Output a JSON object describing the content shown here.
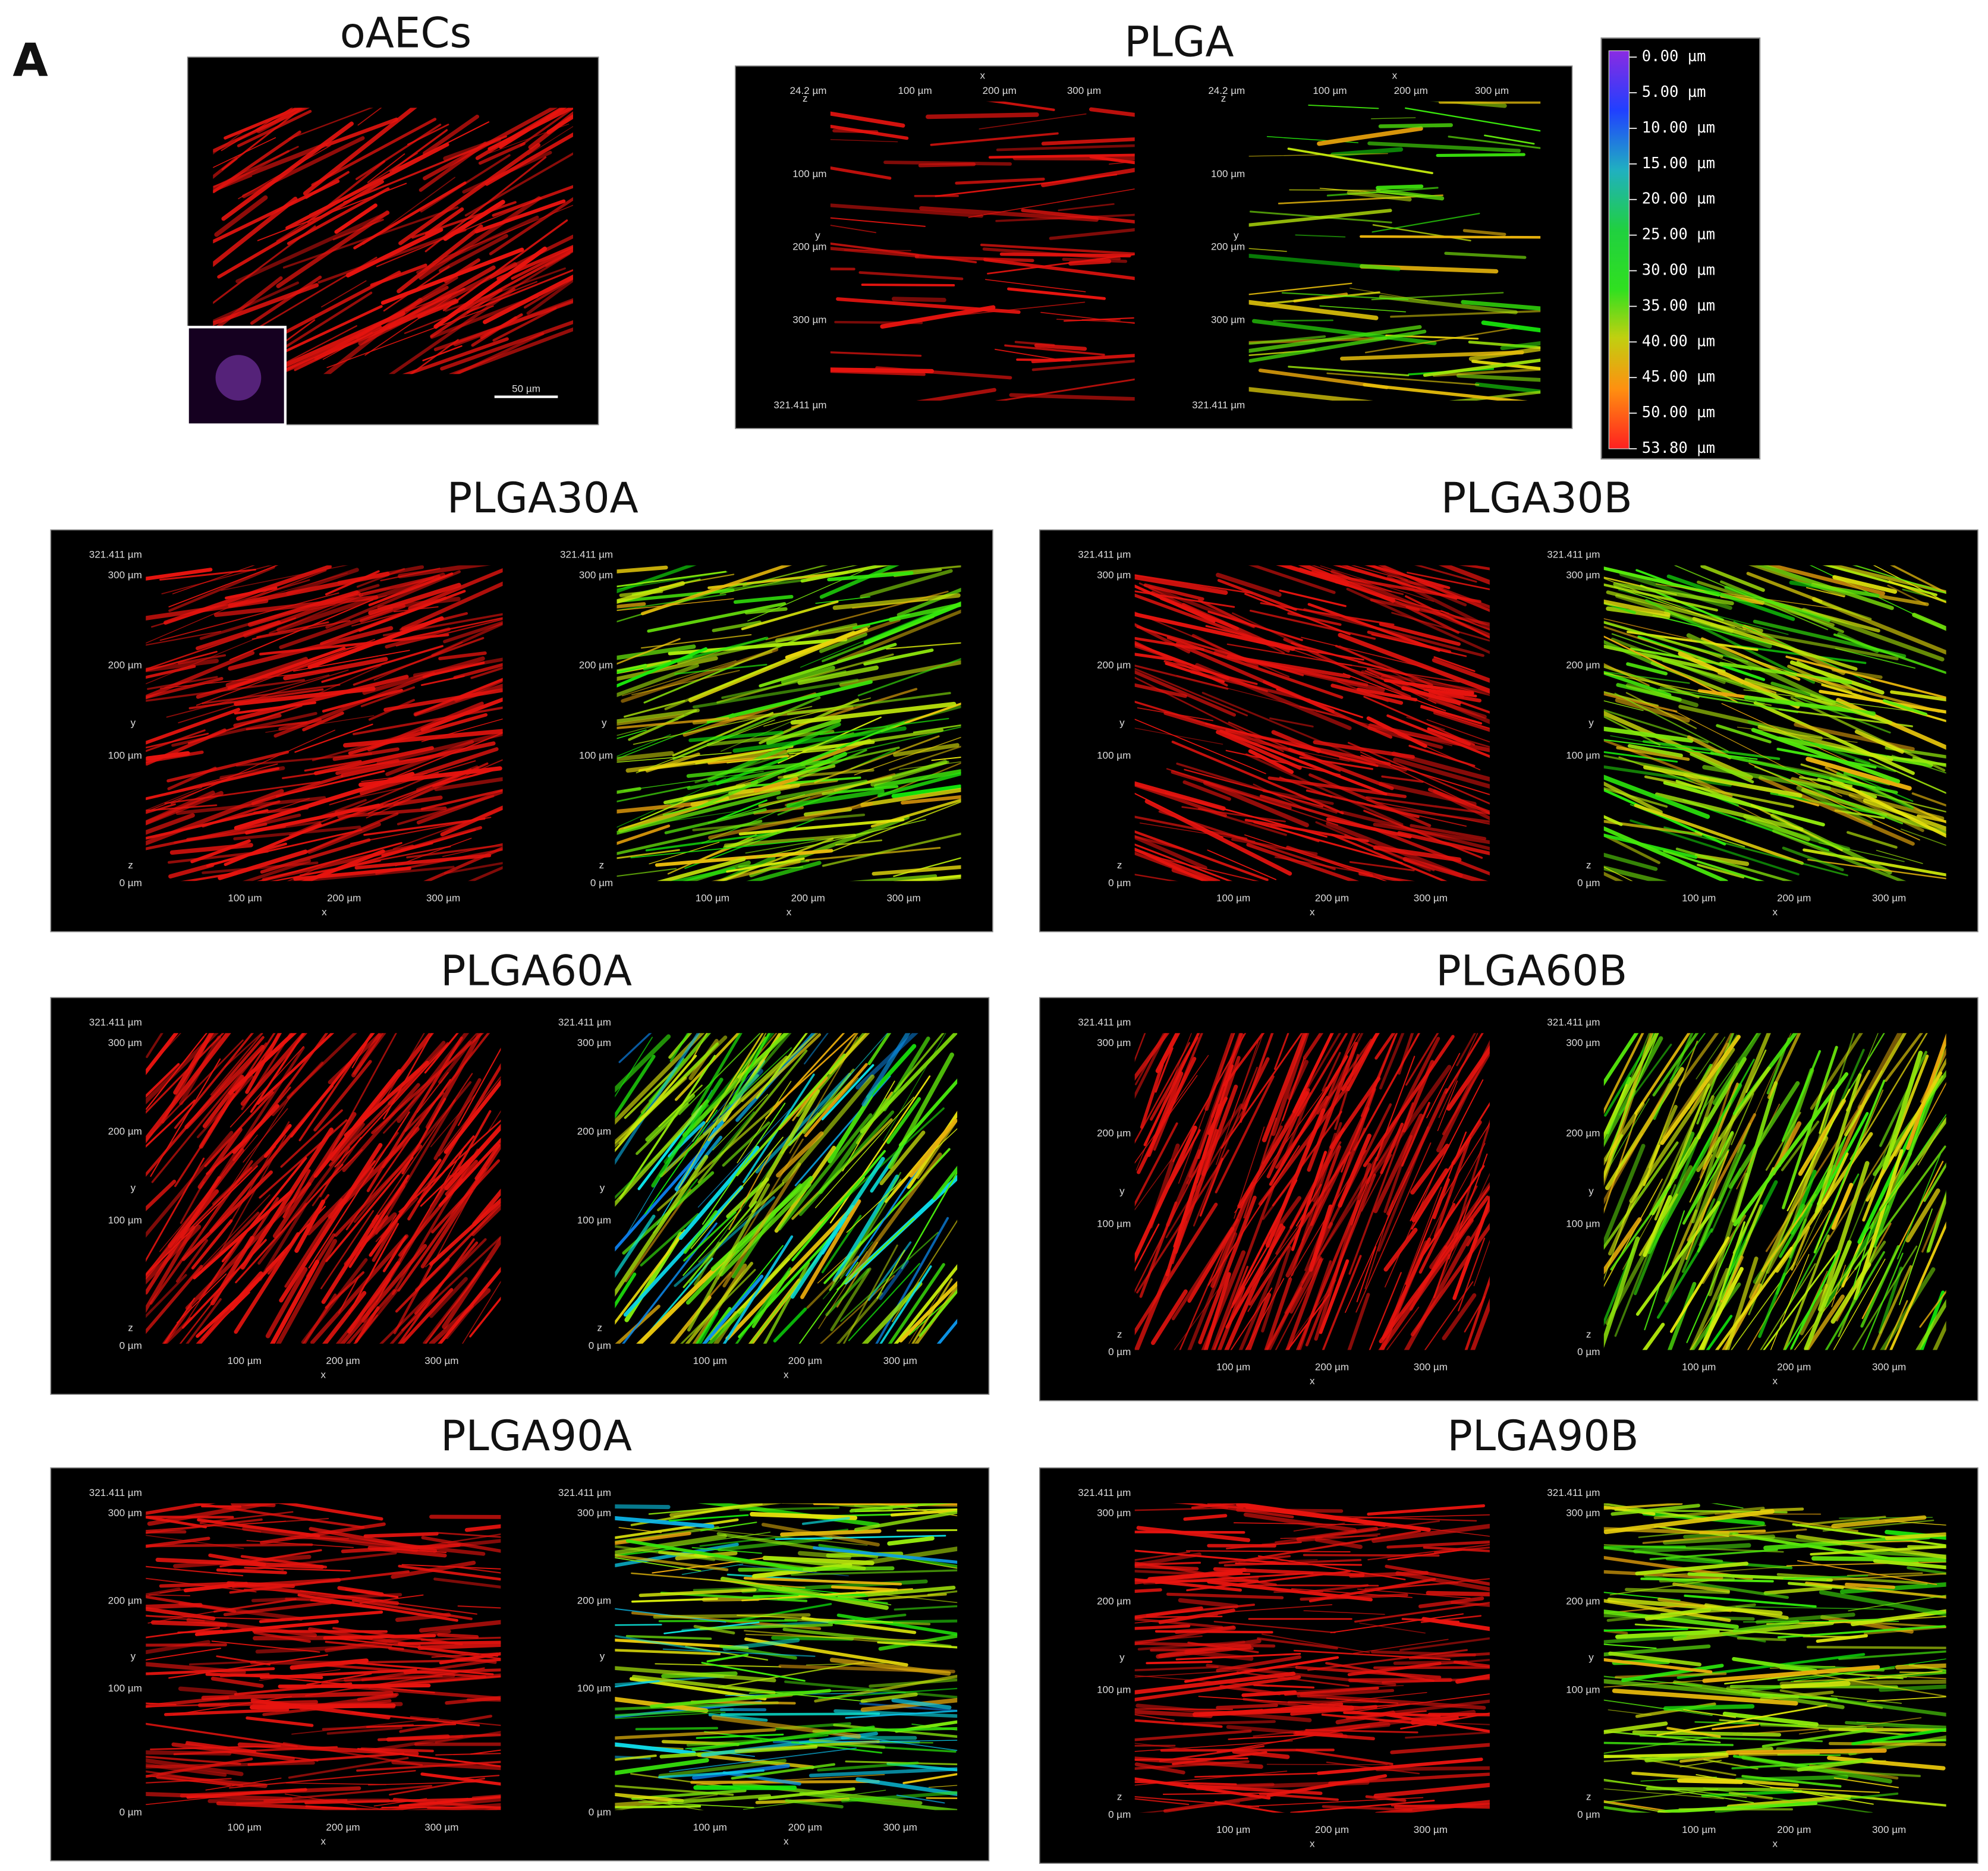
{
  "panel_label": "A",
  "colorbar": {
    "labels": [
      "0.00 µm",
      "5.00 µm",
      "10.00 µm",
      "15.00 µm",
      "20.00 µm",
      "25.00 µm",
      "30.00 µm",
      "35.00 µm",
      "40.00 µm",
      "45.00 µm",
      "50.00 µm",
      "53.80 µm"
    ]
  },
  "panels": [
    {
      "title": "oAECs",
      "scale_bar": "50 µm"
    },
    {
      "title": "PLGA",
      "images": [
        {
          "corner": "24.2 µm",
          "y_end": "321.411 µm",
          "y_ticks": [
            "100 µm",
            "200 µm",
            "300 µm"
          ],
          "x_ticks": [
            "100 µm",
            "200 µm",
            "300 µm"
          ],
          "x_axis": "x",
          "y_axis": "y",
          "z_axis": "z"
        },
        {
          "corner": "24.2 µm",
          "y_end": "321.411 µm",
          "y_ticks": [
            "100 µm",
            "200 µm",
            "300 µm"
          ],
          "x_ticks": [
            "100 µm",
            "200 µm",
            "300 µm"
          ],
          "x_axis": "x",
          "y_axis": "y",
          "z_axis": "z"
        }
      ]
    },
    {
      "title": "PLGA30A",
      "images": [
        {
          "corner": "321.411 µm",
          "y_ticks": [
            "300 µm",
            "200 µm",
            "100 µm"
          ],
          "x_ticks": [
            "100 µm",
            "200 µm",
            "300 µm"
          ],
          "x_axis": "x",
          "y_axis": "y",
          "z_axis": "z",
          "origin": "0 µm"
        },
        {
          "corner": "321.411 µm",
          "y_ticks": [
            "300 µm",
            "200 µm",
            "100 µm"
          ],
          "x_ticks": [
            "100 µm",
            "200 µm",
            "300 µm"
          ],
          "x_axis": "x",
          "y_axis": "y",
          "z_axis": "z",
          "origin": "0 µm"
        }
      ]
    },
    {
      "title": "PLGA30B",
      "images": [
        {
          "corner": "321.411 µm",
          "y_ticks": [
            "300 µm",
            "200 µm",
            "100 µm"
          ],
          "x_ticks": [
            "100 µm",
            "200 µm",
            "300 µm"
          ],
          "x_axis": "x",
          "y_axis": "y",
          "z_axis": "z",
          "origin": "0 µm"
        },
        {
          "corner": "321.411 µm",
          "y_ticks": [
            "300 µm",
            "200 µm",
            "100 µm"
          ],
          "x_ticks": [
            "100 µm",
            "200 µm",
            "300 µm"
          ],
          "x_axis": "x",
          "y_axis": "y",
          "z_axis": "z",
          "origin": "0 µm"
        }
      ]
    },
    {
      "title": "PLGA60A",
      "images": [
        {
          "corner": "321.411 µm",
          "y_ticks": [
            "300 µm",
            "200 µm",
            "100 µm"
          ],
          "x_ticks": [
            "100 µm",
            "200 µm",
            "300 µm"
          ],
          "x_axis": "x",
          "y_axis": "y",
          "z_axis": "z",
          "origin": "0 µm"
        },
        {
          "corner": "321.411 µm",
          "y_ticks": [
            "300 µm",
            "200 µm",
            "100 µm"
          ],
          "x_ticks": [
            "100 µm",
            "200 µm",
            "300 µm"
          ],
          "x_axis": "x",
          "y_axis": "y",
          "z_axis": "z",
          "origin": "0 µm"
        }
      ]
    },
    {
      "title": "PLGA60B",
      "images": [
        {
          "corner": "321.411 µm",
          "y_ticks": [
            "300 µm",
            "200 µm",
            "100 µm"
          ],
          "x_ticks": [
            "100 µm",
            "200 µm",
            "300 µm"
          ],
          "x_axis": "x",
          "y_axis": "y",
          "z_axis": "z",
          "origin": "0 µm"
        },
        {
          "corner": "321.411 µm",
          "y_ticks": [
            "300 µm",
            "200 µm",
            "100 µm"
          ],
          "x_ticks": [
            "100 µm",
            "200 µm",
            "300 µm"
          ],
          "x_axis": "x",
          "y_axis": "y",
          "z_axis": "z",
          "origin": "0 µm"
        }
      ]
    },
    {
      "title": "PLGA90A",
      "images": [
        {
          "corner": "321.411 µm",
          "y_ticks": [
            "300 µm",
            "200 µm",
            "100 µm"
          ],
          "x_ticks": [
            "100 µm",
            "200 µm",
            "300 µm"
          ],
          "x_axis": "x",
          "y_axis": "y",
          "origin": "0 µm"
        },
        {
          "corner": "321.411 µm",
          "y_ticks": [
            "300 µm",
            "200 µm",
            "100 µm"
          ],
          "x_ticks": [
            "100 µm",
            "200 µm",
            "300 µm"
          ],
          "x_axis": "x",
          "y_axis": "y",
          "origin": "0 µm"
        }
      ]
    },
    {
      "title": "PLGA90B",
      "images": [
        {
          "corner": "321.411 µm",
          "y_ticks": [
            "300 µm",
            "200 µm",
            "100 µm"
          ],
          "x_ticks": [
            "100 µm",
            "200 µm",
            "300 µm"
          ],
          "x_axis": "x",
          "y_axis": "y",
          "z_axis": "z",
          "origin": "0 µm"
        },
        {
          "corner": "321.411 µm",
          "y_ticks": [
            "300 µm",
            "200 µm",
            "100 µm"
          ],
          "x_ticks": [
            "100 µm",
            "200 µm",
            "300 µm"
          ],
          "x_axis": "x",
          "y_axis": "y",
          "z_axis": "z",
          "origin": "0 µm"
        }
      ]
    }
  ]
}
